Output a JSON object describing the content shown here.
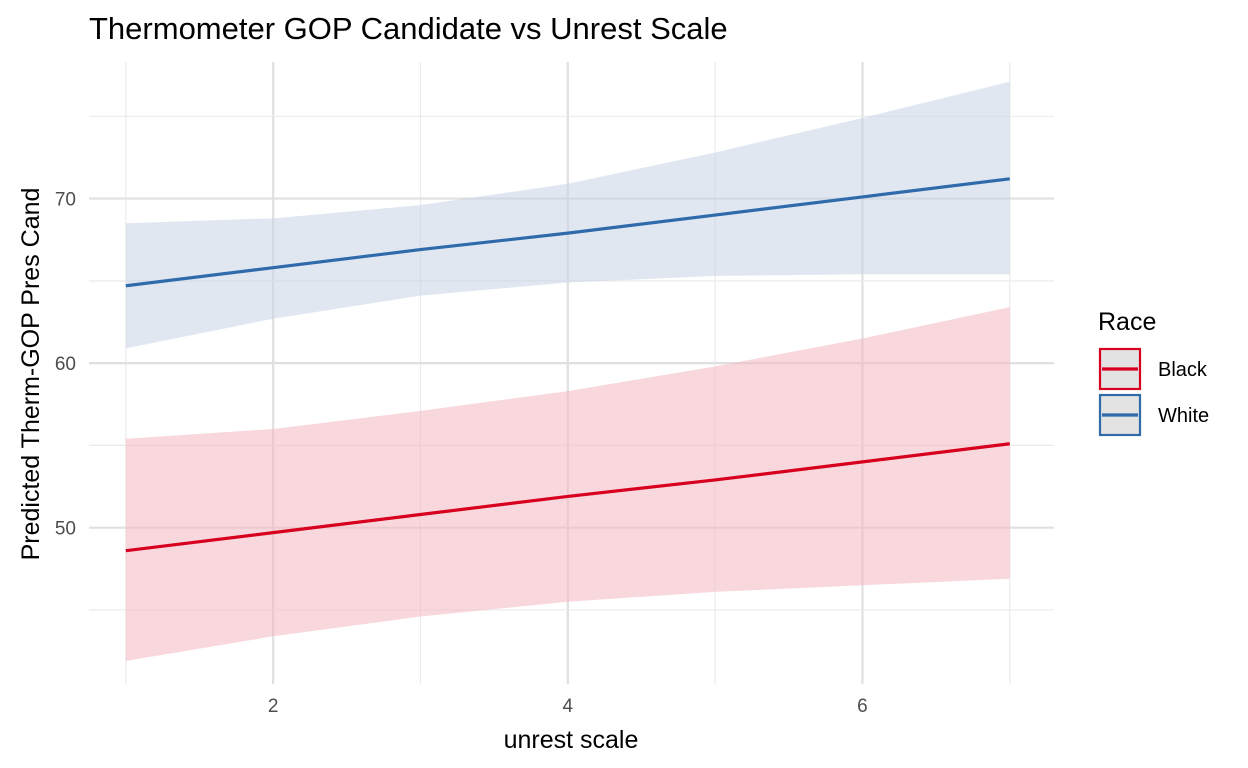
{
  "chart_data": {
    "type": "line",
    "title": "Thermometer GOP Candidate vs Unrest Scale",
    "xlabel": "unrest scale",
    "ylabel": "Predicted Therm-GOP Pres Cand",
    "xlim": [
      0.75,
      7.3
    ],
    "ylim": [
      40.5,
      78.3
    ],
    "x_ticks": [
      2,
      4,
      6
    ],
    "x_tick_labels": [
      "2",
      "4",
      "6"
    ],
    "y_ticks": [
      50,
      60,
      70
    ],
    "y_tick_labels": [
      "50",
      "60",
      "70"
    ],
    "grid": true,
    "legend": {
      "title": "Race",
      "position": "right"
    },
    "series": [
      {
        "name": "Black",
        "color": "#d7001e",
        "x": [
          1,
          2,
          3,
          4,
          5,
          6,
          7
        ],
        "values": [
          48.6,
          49.7,
          50.8,
          51.9,
          52.9,
          54.0,
          55.1
        ],
        "lower": [
          41.9,
          43.4,
          44.6,
          45.5,
          46.1,
          46.5,
          46.9
        ],
        "upper": [
          55.4,
          56.0,
          57.1,
          58.3,
          59.8,
          61.5,
          63.4
        ]
      },
      {
        "name": "White",
        "color": "#2f6aab",
        "x": [
          1,
          2,
          3,
          4,
          5,
          6,
          7
        ],
        "values": [
          64.7,
          65.8,
          66.9,
          67.9,
          69.0,
          70.1,
          71.2
        ],
        "lower": [
          60.9,
          62.7,
          64.1,
          64.9,
          65.3,
          65.4,
          65.4
        ],
        "upper": [
          68.5,
          68.8,
          69.6,
          70.9,
          72.8,
          74.9,
          77.1
        ]
      }
    ]
  }
}
